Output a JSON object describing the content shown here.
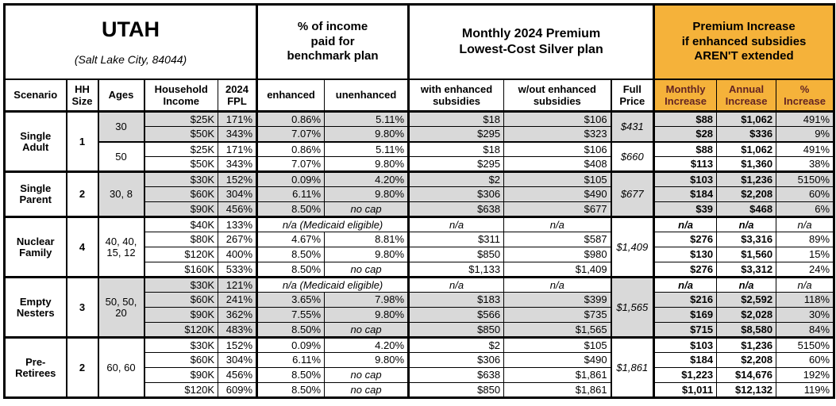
{
  "header": {
    "title": "UTAH",
    "subtitle": "(Salt Lake City, 84044)",
    "benchmark_block": "% of income\npaid for\nbenchmark plan",
    "premium_block": "Monthly 2024 Premium\nLowest-Cost Silver plan",
    "increase_block": "Premium Increase\nif enhanced subsidies\nAREN'T extended"
  },
  "columns": {
    "scenario": "Scenario",
    "hh": "HH\nSize",
    "ages": "Ages",
    "income": "Household\nIncome",
    "fpl": "2024\nFPL",
    "enhanced": "enhanced",
    "unenhanced": "unenhanced",
    "with_sub": "with enhanced\nsubsidies",
    "wout_sub": "w/out enhanced\nsubsidies",
    "full": "Full\nPrice",
    "monthly": "Monthly\nIncrease",
    "annual": "Annual\nIncrease",
    "pct": "%\nIncrease"
  },
  "labels": {
    "medicaid": "n/a (Medicaid eligible)",
    "no_cap": "no cap",
    "na": "n/a"
  },
  "colors": {
    "accent_orange": "#F5B23A",
    "shade_gray": "#D9D9D9",
    "increase_header_text": "#632423"
  },
  "groups": [
    {
      "scenario": "Single Adult",
      "hh": "1",
      "subgroups": [
        {
          "ages": "30",
          "shaded": true,
          "full_price": "$431",
          "rows": [
            {
              "income": "$25K",
              "fpl": "171%",
              "enhanced": "0.86%",
              "unenhanced": "5.11%",
              "with_sub": "$18",
              "wout_sub": "$106",
              "monthly": "$88",
              "annual": "$1,062",
              "pct": "491%"
            },
            {
              "income": "$50K",
              "fpl": "343%",
              "enhanced": "7.07%",
              "unenhanced": "9.80%",
              "with_sub": "$295",
              "wout_sub": "$323",
              "monthly": "$28",
              "annual": "$336",
              "pct": "9%"
            }
          ]
        },
        {
          "ages": "50",
          "shaded": false,
          "full_price": "$660",
          "rows": [
            {
              "income": "$25K",
              "fpl": "171%",
              "enhanced": "0.86%",
              "unenhanced": "5.11%",
              "with_sub": "$18",
              "wout_sub": "$106",
              "monthly": "$88",
              "annual": "$1,062",
              "pct": "491%"
            },
            {
              "income": "$50K",
              "fpl": "343%",
              "enhanced": "7.07%",
              "unenhanced": "9.80%",
              "with_sub": "$295",
              "wout_sub": "$408",
              "monthly": "$113",
              "annual": "$1,360",
              "pct": "38%"
            }
          ]
        }
      ]
    },
    {
      "scenario": "Single Parent",
      "hh": "2",
      "subgroups": [
        {
          "ages": "30, 8",
          "shaded": true,
          "full_price": "$677",
          "rows": [
            {
              "income": "$30K",
              "fpl": "152%",
              "enhanced": "0.09%",
              "unenhanced": "4.20%",
              "with_sub": "$2",
              "wout_sub": "$105",
              "monthly": "$103",
              "annual": "$1,236",
              "pct": "5150%"
            },
            {
              "income": "$60K",
              "fpl": "304%",
              "enhanced": "6.11%",
              "unenhanced": "9.80%",
              "with_sub": "$306",
              "wout_sub": "$490",
              "monthly": "$184",
              "annual": "$2,208",
              "pct": "60%"
            },
            {
              "income": "$90K",
              "fpl": "456%",
              "enhanced": "8.50%",
              "unenhanced": "no cap",
              "with_sub": "$638",
              "wout_sub": "$677",
              "monthly": "$39",
              "annual": "$468",
              "pct": "6%"
            }
          ]
        }
      ]
    },
    {
      "scenario": "Nuclear Family",
      "hh": "4",
      "subgroups": [
        {
          "ages": "40, 40, 15, 12",
          "shaded": false,
          "full_price": "$1,409",
          "rows": [
            {
              "income": "$40K",
              "fpl": "133%",
              "medicaid": true,
              "with_sub": "n/a",
              "wout_sub": "n/a",
              "monthly": "n/a",
              "annual": "n/a",
              "pct": "n/a"
            },
            {
              "income": "$80K",
              "fpl": "267%",
              "enhanced": "4.67%",
              "unenhanced": "8.81%",
              "with_sub": "$311",
              "wout_sub": "$587",
              "monthly": "$276",
              "annual": "$3,316",
              "pct": "89%"
            },
            {
              "income": "$120K",
              "fpl": "400%",
              "enhanced": "8.50%",
              "unenhanced": "9.80%",
              "with_sub": "$850",
              "wout_sub": "$980",
              "monthly": "$130",
              "annual": "$1,560",
              "pct": "15%"
            },
            {
              "income": "$160K",
              "fpl": "533%",
              "enhanced": "8.50%",
              "unenhanced": "no cap",
              "with_sub": "$1,133",
              "wout_sub": "$1,409",
              "monthly": "$276",
              "annual": "$3,312",
              "pct": "24%"
            }
          ]
        }
      ]
    },
    {
      "scenario": "Empty Nesters",
      "hh": "3",
      "subgroups": [
        {
          "ages": "50, 50, 20",
          "shaded": true,
          "full_price": "$1,565",
          "rows": [
            {
              "income": "$30K",
              "fpl": "121%",
              "medicaid": true,
              "with_sub": "n/a",
              "wout_sub": "n/a",
              "monthly": "n/a",
              "annual": "n/a",
              "pct": "n/a"
            },
            {
              "income": "$60K",
              "fpl": "241%",
              "enhanced": "3.65%",
              "unenhanced": "7.98%",
              "with_sub": "$183",
              "wout_sub": "$399",
              "monthly": "$216",
              "annual": "$2,592",
              "pct": "118%"
            },
            {
              "income": "$90K",
              "fpl": "362%",
              "enhanced": "7.55%",
              "unenhanced": "9.80%",
              "with_sub": "$566",
              "wout_sub": "$735",
              "monthly": "$169",
              "annual": "$2,028",
              "pct": "30%"
            },
            {
              "income": "$120K",
              "fpl": "483%",
              "enhanced": "8.50%",
              "unenhanced": "no cap",
              "with_sub": "$850",
              "wout_sub": "$1,565",
              "monthly": "$715",
              "annual": "$8,580",
              "pct": "84%"
            }
          ]
        }
      ]
    },
    {
      "scenario": "Pre-Retirees",
      "hh": "2",
      "subgroups": [
        {
          "ages": "60, 60",
          "shaded": false,
          "full_price": "$1,861",
          "rows": [
            {
              "income": "$30K",
              "fpl": "152%",
              "enhanced": "0.09%",
              "unenhanced": "4.20%",
              "with_sub": "$2",
              "wout_sub": "$105",
              "monthly": "$103",
              "annual": "$1,236",
              "pct": "5150%"
            },
            {
              "income": "$60K",
              "fpl": "304%",
              "enhanced": "6.11%",
              "unenhanced": "9.80%",
              "with_sub": "$306",
              "wout_sub": "$490",
              "monthly": "$184",
              "annual": "$2,208",
              "pct": "60%"
            },
            {
              "income": "$90K",
              "fpl": "456%",
              "enhanced": "8.50%",
              "unenhanced": "no cap",
              "with_sub": "$638",
              "wout_sub": "$1,861",
              "monthly": "$1,223",
              "annual": "$14,676",
              "pct": "192%"
            },
            {
              "income": "$120K",
              "fpl": "609%",
              "enhanced": "8.50%",
              "unenhanced": "no cap",
              "with_sub": "$850",
              "wout_sub": "$1,861",
              "monthly": "$1,011",
              "annual": "$12,132",
              "pct": "119%"
            }
          ]
        }
      ]
    }
  ]
}
